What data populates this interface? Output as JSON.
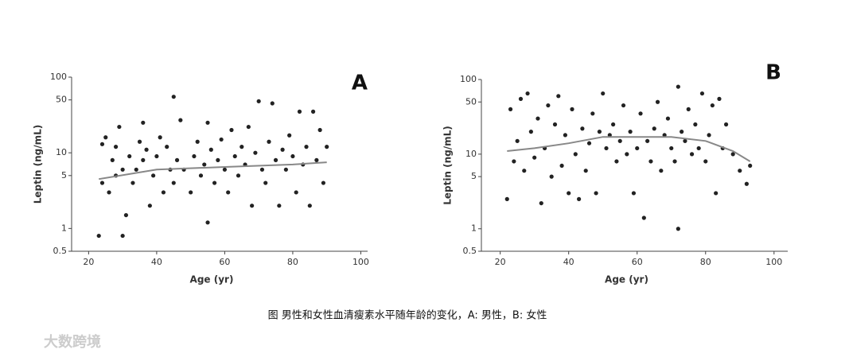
{
  "chart_data": [
    {
      "type": "scatter",
      "title": "A",
      "xlabel": "Age (yr)",
      "ylabel": "Leptin (ng/mL)",
      "x": [
        23,
        24,
        24,
        25,
        26,
        27,
        28,
        28,
        29,
        30,
        30,
        31,
        32,
        33,
        34,
        35,
        36,
        36,
        37,
        38,
        39,
        40,
        41,
        42,
        43,
        44,
        45,
        45,
        46,
        47,
        48,
        50,
        51,
        52,
        53,
        54,
        55,
        55,
        56,
        57,
        58,
        59,
        60,
        61,
        62,
        63,
        64,
        65,
        66,
        67,
        68,
        69,
        70,
        71,
        72,
        73,
        74,
        75,
        76,
        77,
        78,
        79,
        80,
        81,
        82,
        83,
        84,
        85,
        86,
        87,
        88,
        89,
        90
      ],
      "values": [
        0.8,
        13,
        4,
        16,
        3,
        8,
        12,
        5,
        22,
        6,
        0.8,
        1.5,
        9,
        4,
        6,
        14,
        25,
        8,
        11,
        2,
        5,
        9,
        16,
        3,
        12,
        6,
        55,
        4,
        8,
        27,
        6,
        3,
        9,
        14,
        5,
        7,
        25,
        1.2,
        11,
        4,
        8,
        15,
        6,
        3,
        20,
        9,
        5,
        12,
        7,
        22,
        2,
        10,
        48,
        6,
        4,
        14,
        45,
        8,
        2,
        11,
        6,
        17,
        9,
        3,
        35,
        7,
        12,
        2,
        35,
        8,
        20,
        4,
        12
      ],
      "color": "#222222",
      "fit": {
        "x": [
          23,
          40,
          60,
          80,
          90
        ],
        "values": [
          4.5,
          6,
          6.5,
          7,
          7.5
        ],
        "color": "#888888"
      },
      "xlim": [
        15,
        102
      ],
      "xticks": [
        20,
        40,
        60,
        80,
        100
      ],
      "ylim": [
        0.5,
        100
      ],
      "yticks": [
        0.5,
        1,
        5,
        10,
        50,
        100
      ],
      "log_y": true
    },
    {
      "type": "scatter",
      "title": "B",
      "xlabel": "Age (yr)",
      "ylabel": "Leptin (ng/mL)",
      "x": [
        22,
        23,
        24,
        25,
        26,
        27,
        28,
        29,
        30,
        31,
        32,
        33,
        34,
        35,
        36,
        37,
        38,
        39,
        40,
        41,
        42,
        43,
        44,
        45,
        46,
        47,
        48,
        49,
        50,
        51,
        52,
        53,
        54,
        55,
        56,
        57,
        58,
        59,
        60,
        61,
        62,
        63,
        64,
        65,
        66,
        67,
        68,
        69,
        70,
        71,
        72,
        72,
        73,
        74,
        75,
        76,
        77,
        78,
        79,
        80,
        81,
        82,
        83,
        84,
        85,
        86,
        88,
        90,
        92,
        93
      ],
      "values": [
        2.5,
        40,
        8,
        15,
        55,
        6,
        65,
        20,
        9,
        30,
        2.2,
        12,
        45,
        5,
        25,
        60,
        7,
        18,
        3,
        40,
        10,
        2.5,
        22,
        6,
        14,
        35,
        3,
        20,
        65,
        12,
        18,
        25,
        8,
        15,
        45,
        10,
        20,
        3,
        12,
        35,
        1.4,
        15,
        8,
        22,
        50,
        6,
        18,
        30,
        12,
        8,
        1,
        80,
        20,
        15,
        40,
        10,
        25,
        12,
        65,
        8,
        18,
        45,
        3,
        55,
        12,
        25,
        10,
        6,
        4,
        7
      ],
      "color": "#222222",
      "fit": {
        "x": [
          22,
          30,
          40,
          50,
          60,
          70,
          80,
          88,
          93
        ],
        "values": [
          11,
          12,
          14,
          17,
          17,
          17,
          15,
          11,
          8
        ],
        "color": "#888888"
      },
      "xlim": [
        14.5,
        104
      ],
      "xticks": [
        20,
        40,
        60,
        80,
        100
      ],
      "ylim": [
        0.5,
        100
      ],
      "yticks": [
        0.5,
        1,
        5,
        10,
        50,
        100
      ],
      "log_y": true
    }
  ],
  "caption": "图 男性和女性血清瘦素水平随年龄的变化，A: 男性，B: 女性",
  "watermark": "大数跨境"
}
